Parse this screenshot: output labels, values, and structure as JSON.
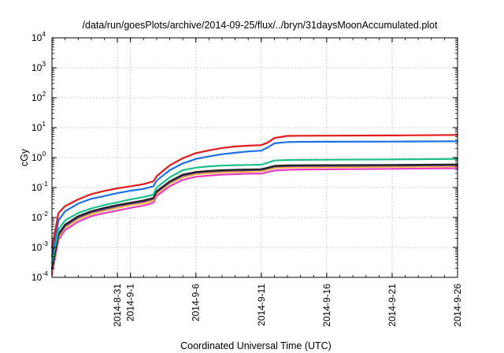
{
  "chart_data": {
    "type": "line",
    "title": "/data/run/goesPlots/archive/2014-09-25/flux/../bryn/31daysMoonAccumulated.plot",
    "xlabel": "Coordinated Universal Time (UTC)",
    "ylabel": "cGy",
    "xlim": [
      "2014-08-26",
      "2014-09-26"
    ],
    "ylim": [
      0.0001,
      10000
    ],
    "y_scale": "log",
    "grid": true,
    "legend": "none",
    "x_ticks": [
      {
        "date": "2014-08-31",
        "label": "2014-8-31"
      },
      {
        "date": "2014-09-01",
        "label": "2014-9-1"
      },
      {
        "date": "2014-09-06",
        "label": "2014-9-6"
      },
      {
        "date": "2014-09-11",
        "label": "2014-9-11"
      },
      {
        "date": "2014-09-16",
        "label": "2014-9-16"
      },
      {
        "date": "2014-09-21",
        "label": "2014-9-21"
      },
      {
        "date": "2014-09-26",
        "label": "2014-9-26"
      }
    ],
    "y_ticks": [
      {
        "value": 0.0001,
        "base": "10",
        "exp": "-4"
      },
      {
        "value": 0.001,
        "base": "10",
        "exp": "-3"
      },
      {
        "value": 0.01,
        "base": "10",
        "exp": "-2"
      },
      {
        "value": 0.1,
        "base": "10",
        "exp": "-1"
      },
      {
        "value": 1,
        "base": "10",
        "exp": "0"
      },
      {
        "value": 10,
        "base": "10",
        "exp": "1"
      },
      {
        "value": 100,
        "base": "10",
        "exp": "2"
      },
      {
        "value": 1000,
        "base": "10",
        "exp": "3"
      },
      {
        "value": 10000,
        "base": "10",
        "exp": "4"
      }
    ],
    "x": [
      "2014-08-26",
      "2014-08-26 12:00",
      "2014-08-27",
      "2014-08-28",
      "2014-08-29",
      "2014-08-30",
      "2014-08-31",
      "2014-09-01",
      "2014-09-02",
      "2014-09-02 18:00",
      "2014-09-03",
      "2014-09-04",
      "2014-09-05",
      "2014-09-06",
      "2014-09-07",
      "2014-09-08",
      "2014-09-09",
      "2014-09-10",
      "2014-09-11",
      "2014-09-11 12:00",
      "2014-09-12",
      "2014-09-13",
      "2014-09-14",
      "2014-09-16",
      "2014-09-21",
      "2014-09-26"
    ],
    "series": [
      {
        "color": "#e31a1c",
        "values": [
          0.001,
          0.014,
          0.024,
          0.04,
          0.06,
          0.077,
          0.094,
          0.11,
          0.13,
          0.16,
          0.24,
          0.55,
          0.95,
          1.4,
          1.75,
          2.1,
          2.35,
          2.5,
          2.6,
          3.2,
          4.5,
          5.3,
          5.35,
          5.4,
          5.5,
          5.7
        ]
      },
      {
        "color": "#1e6fe8",
        "values": [
          0.0005,
          0.008,
          0.016,
          0.029,
          0.042,
          0.052,
          0.065,
          0.078,
          0.09,
          0.11,
          0.17,
          0.38,
          0.64,
          0.9,
          1.1,
          1.3,
          1.45,
          1.6,
          1.7,
          2.2,
          3.0,
          3.3,
          3.35,
          3.38,
          3.42,
          3.5
        ]
      },
      {
        "color": "#1dbf8c",
        "values": [
          0.0003,
          0.004,
          0.008,
          0.014,
          0.02,
          0.026,
          0.032,
          0.04,
          0.048,
          0.058,
          0.1,
          0.22,
          0.38,
          0.46,
          0.51,
          0.54,
          0.56,
          0.57,
          0.58,
          0.68,
          0.8,
          0.83,
          0.84,
          0.85,
          0.87,
          0.9
        ]
      },
      {
        "color": "#222222",
        "values": [
          0.0002,
          0.0028,
          0.0058,
          0.011,
          0.016,
          0.021,
          0.026,
          0.031,
          0.037,
          0.045,
          0.075,
          0.16,
          0.27,
          0.33,
          0.36,
          0.38,
          0.39,
          0.4,
          0.41,
          0.46,
          0.53,
          0.55,
          0.555,
          0.56,
          0.57,
          0.59
        ]
      },
      {
        "color": "#6a3d9a",
        "values": [
          0.00018,
          0.0025,
          0.0052,
          0.01,
          0.015,
          0.019,
          0.024,
          0.029,
          0.034,
          0.042,
          0.07,
          0.15,
          0.25,
          0.31,
          0.34,
          0.36,
          0.37,
          0.38,
          0.39,
          0.44,
          0.5,
          0.52,
          0.525,
          0.53,
          0.54,
          0.56
        ]
      },
      {
        "color": "#f2b43a",
        "values": [
          0.00015,
          0.0022,
          0.0046,
          0.0088,
          0.013,
          0.017,
          0.021,
          0.026,
          0.03,
          0.037,
          0.062,
          0.135,
          0.22,
          0.28,
          0.3,
          0.32,
          0.33,
          0.34,
          0.35,
          0.39,
          0.45,
          0.47,
          0.475,
          0.48,
          0.49,
          0.51
        ]
      },
      {
        "color": "#e83cc2",
        "values": [
          0.00012,
          0.0018,
          0.0038,
          0.0072,
          0.011,
          0.014,
          0.017,
          0.021,
          0.025,
          0.031,
          0.052,
          0.11,
          0.18,
          0.23,
          0.25,
          0.27,
          0.28,
          0.29,
          0.29,
          0.33,
          0.37,
          0.39,
          0.4,
          0.405,
          0.42,
          0.44
        ]
      }
    ]
  }
}
